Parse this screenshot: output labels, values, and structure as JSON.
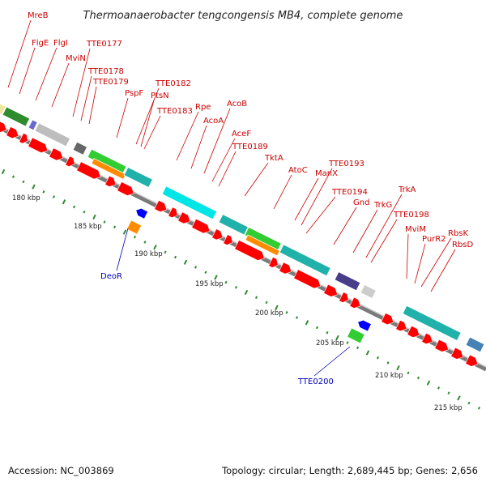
{
  "title": "Thermoanaerobacter tengcongensis MB4, complete genome",
  "footer": {
    "accession": "Accession: NC_003869",
    "summary": "Topology: circular; Length: 2,689,445 bp; Genes: 2,656"
  },
  "colors": {
    "gene_arrow": "#ff0000",
    "forward_label": "#cc0000",
    "reverse_label": "#0000bb",
    "tick": "#2e8b2e",
    "backbone": "#7a7a7a"
  },
  "axis": {
    "tick_labels": [
      "180 kbp",
      "185 kbp",
      "190 kbp",
      "195 kbp",
      "200 kbp",
      "205 kbp",
      "210 kbp",
      "215 kbp"
    ]
  },
  "forward_gene_labels": [
    "MreB",
    "FlgE",
    "FlgI",
    "MviN",
    "TTE0177",
    "TTE0178",
    "TTE0179",
    "PspF",
    "TTE0182",
    "PtsN",
    "TTE0183",
    "Rpe",
    "AcoA",
    "AcoB",
    "AceF",
    "TTE0189",
    "TktA",
    "AtoC",
    "ManX",
    "TTE0193",
    "TTE0194",
    "Gnd",
    "TrkG",
    "TrkA",
    "TTE0198",
    "MviM",
    "PurR2",
    "RbsK",
    "RbsD"
  ],
  "reverse_gene_labels": [
    "DeoR",
    "TTE0200"
  ],
  "features": {
    "blocks": [
      {
        "color": "#f0e6a0"
      },
      {
        "color": "#2e8b2e"
      },
      {
        "color": "#6a6acd"
      },
      {
        "color": "#bdbdbd"
      },
      {
        "color": "#666666"
      },
      {
        "color": "#32cd32"
      },
      {
        "color": "#ff8c00"
      },
      {
        "color": "#20b2aa"
      },
      {
        "color": "#00e5e5"
      },
      {
        "color": "#20b2aa"
      },
      {
        "color": "#32cd32"
      },
      {
        "color": "#ff8c00"
      },
      {
        "color": "#20b2aa"
      },
      {
        "color": "#483d8b"
      },
      {
        "color": "#cccccc"
      },
      {
        "color": "#20b2aa"
      },
      {
        "color": "#4682b4"
      }
    ],
    "reverse_genes": [
      {
        "color": "#ff8c00"
      },
      {
        "color": "#0000ff"
      },
      {
        "color": "#32cd32"
      },
      {
        "color": "#0000ff"
      }
    ]
  }
}
